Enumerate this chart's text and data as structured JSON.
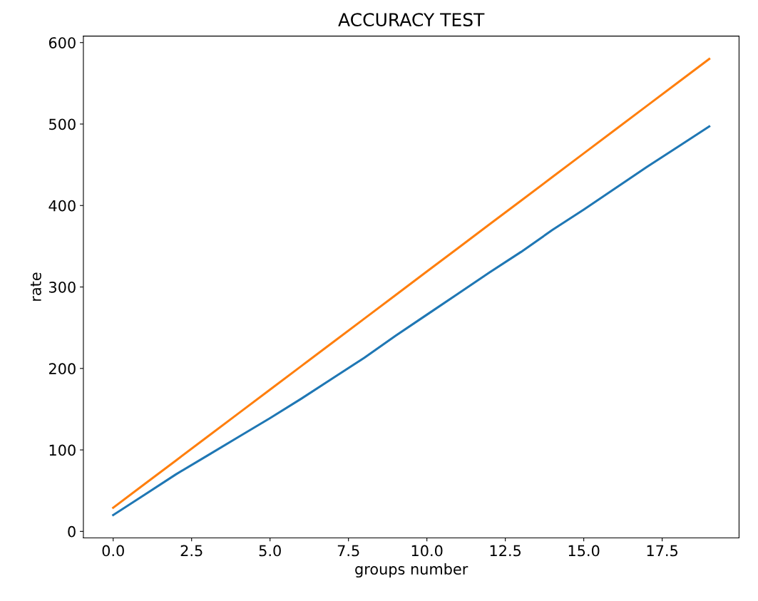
{
  "chart_data": {
    "type": "line",
    "title": "ACCURACY TEST",
    "xlabel": "groups number",
    "ylabel": "rate",
    "x": [
      0,
      1,
      2,
      3,
      4,
      5,
      6,
      7,
      8,
      9,
      10,
      11,
      12,
      13,
      14,
      15,
      16,
      17,
      18,
      19
    ],
    "series": [
      {
        "color": "#1f77b4",
        "values": [
          20,
          45,
          70,
          93,
          116,
          139,
          163,
          188,
          213,
          240,
          266,
          292,
          318,
          343,
          370,
          395,
          421,
          447,
          472,
          497
        ]
      },
      {
        "color": "#ff7f0e",
        "values": [
          29,
          58,
          87,
          116,
          145,
          174,
          203,
          232,
          261,
          290,
          319,
          348,
          377,
          406,
          435,
          464,
          493,
          522,
          551,
          580
        ]
      }
    ],
    "xlim": [
      -0.95,
      19.95
    ],
    "xticks": [
      {
        "value": 0,
        "label": "0.0"
      },
      {
        "value": 2.5,
        "label": "2.5"
      },
      {
        "value": 5,
        "label": "5.0"
      },
      {
        "value": 7.5,
        "label": "7.5"
      },
      {
        "value": 10,
        "label": "10.0"
      },
      {
        "value": 12.5,
        "label": "12.5"
      },
      {
        "value": 15,
        "label": "15.0"
      },
      {
        "value": 17.5,
        "label": "17.5"
      }
    ],
    "ylim": [
      -8,
      608
    ],
    "yticks": [
      0,
      100,
      200,
      300,
      400,
      500,
      600
    ],
    "grid": false
  }
}
